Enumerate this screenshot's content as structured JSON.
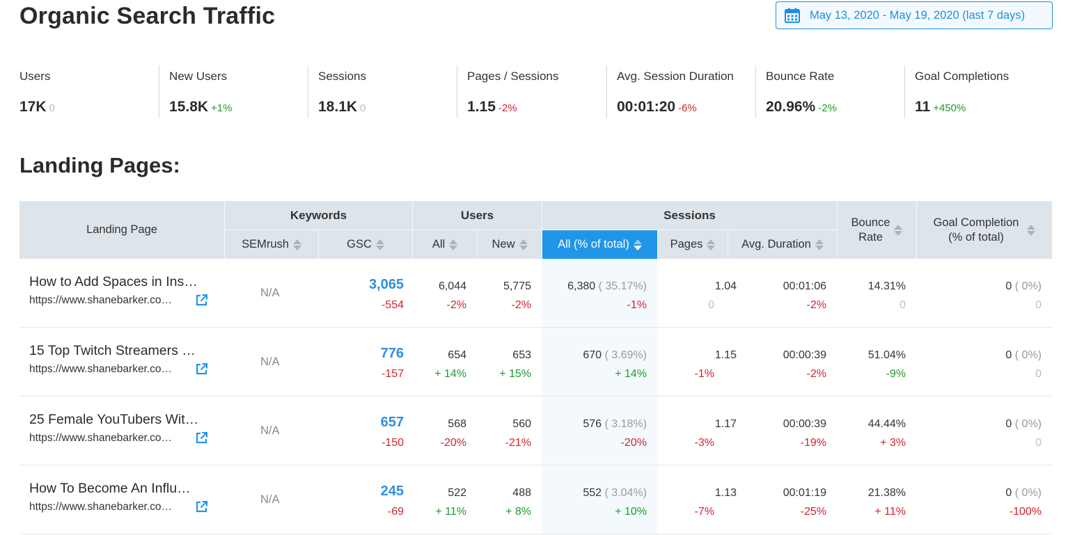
{
  "header": {
    "title": "Organic Search Traffic",
    "date_range": "May 13, 2020 - May 19, 2020 (last 7 days)"
  },
  "metrics": [
    {
      "label": "Users",
      "value": "17K",
      "delta": "0",
      "trend": "zero"
    },
    {
      "label": "New Users",
      "value": "15.8K",
      "delta": "+1%",
      "trend": "pos"
    },
    {
      "label": "Sessions",
      "value": "18.1K",
      "delta": "0",
      "trend": "zero"
    },
    {
      "label": "Pages / Sessions",
      "value": "1.15",
      "delta": "-2%",
      "trend": "neg"
    },
    {
      "label": "Avg. Session Duration",
      "value": "00:01:20",
      "delta": "-6%",
      "trend": "neg"
    },
    {
      "label": "Bounce Rate",
      "value": "20.96%",
      "delta": "-2%",
      "trend": "pos"
    },
    {
      "label": "Goal Completions",
      "value": "11",
      "delta": "+450%",
      "trend": "pos"
    }
  ],
  "landing": {
    "title": "Landing Pages:",
    "headers": {
      "landing_page": "Landing Page",
      "keywords": "Keywords",
      "users": "Users",
      "sessions": "Sessions",
      "semrush": "SEMrush",
      "gsc": "GSC",
      "all": "All",
      "new": "New",
      "all_pct": "All (% of total)",
      "pages": "Pages",
      "avg_duration": "Avg. Duration",
      "bounce_rate_1": "Bounce",
      "bounce_rate_2": "Rate",
      "goal_1": "Goal Completion",
      "goal_2": "(% of total)"
    },
    "rows": [
      {
        "title": "How to Add Spaces in Ins…",
        "url": "https://www.shanebarker.co…",
        "semrush": "N/A",
        "gsc": "3,065",
        "gsc_d": "-554",
        "gsc_t": "neg",
        "users_all": "6,044",
        "users_all_d": "-2%",
        "users_all_t": "neg",
        "users_new": "5,775",
        "users_new_d": "-2%",
        "users_new_t": "neg",
        "sessions": "6,380",
        "sessions_pct": "( 35.17%)",
        "sessions_d": "-1%",
        "sessions_t": "neg",
        "pages": "1.04",
        "pages_d": "0",
        "pages_t": "zero",
        "duration": "00:01:06",
        "duration_d": "-2%",
        "duration_t": "neg",
        "bounce": "14.31%",
        "bounce_d": "0",
        "bounce_t": "zero",
        "goal": "0",
        "goal_pct": "( 0%)",
        "goal_d": "0",
        "goal_t": "zero"
      },
      {
        "title": "15 Top Twitch Streamers …",
        "url": "https://www.shanebarker.co…",
        "semrush": "N/A",
        "gsc": "776",
        "gsc_d": "-157",
        "gsc_t": "neg",
        "users_all": "654",
        "users_all_d": "+ 14%",
        "users_all_t": "pos",
        "users_new": "653",
        "users_new_d": "+ 15%",
        "users_new_t": "pos",
        "sessions": "670",
        "sessions_pct": "( 3.69%)",
        "sessions_d": "+ 14%",
        "sessions_t": "pos",
        "pages": "1.15",
        "pages_d": "-1%",
        "pages_t": "neg",
        "duration": "00:00:39",
        "duration_d": "-2%",
        "duration_t": "neg",
        "bounce": "51.04%",
        "bounce_d": "-9%",
        "bounce_t": "pos",
        "goal": "0",
        "goal_pct": "( 0%)",
        "goal_d": "0",
        "goal_t": "zero"
      },
      {
        "title": "25 Female YouTubers Wit…",
        "url": "https://www.shanebarker.co…",
        "semrush": "N/A",
        "gsc": "657",
        "gsc_d": "-150",
        "gsc_t": "neg",
        "users_all": "568",
        "users_all_d": "-20%",
        "users_all_t": "neg",
        "users_new": "560",
        "users_new_d": "-21%",
        "users_new_t": "neg",
        "sessions": "576",
        "sessions_pct": "( 3.18%)",
        "sessions_d": "-20%",
        "sessions_t": "neg",
        "pages": "1.17",
        "pages_d": "-3%",
        "pages_t": "neg",
        "duration": "00:00:39",
        "duration_d": "-19%",
        "duration_t": "neg",
        "bounce": "44.44%",
        "bounce_d": "+ 3%",
        "bounce_t": "neg",
        "goal": "0",
        "goal_pct": "( 0%)",
        "goal_d": "0",
        "goal_t": "zero"
      },
      {
        "title": "How To Become An Influ…",
        "url": "https://www.shanebarker.co…",
        "semrush": "N/A",
        "gsc": "245",
        "gsc_d": "-69",
        "gsc_t": "neg",
        "users_all": "522",
        "users_all_d": "+ 11%",
        "users_all_t": "pos",
        "users_new": "488",
        "users_new_d": "+ 8%",
        "users_new_t": "pos",
        "sessions": "552",
        "sessions_pct": "( 3.04%)",
        "sessions_d": "+ 10%",
        "sessions_t": "pos",
        "pages": "1.13",
        "pages_d": "-7%",
        "pages_t": "neg",
        "duration": "00:01:19",
        "duration_d": "-25%",
        "duration_t": "neg",
        "bounce": "21.38%",
        "bounce_d": "+ 11%",
        "bounce_t": "neg",
        "goal": "0",
        "goal_pct": "( 0%)",
        "goal_d": "-100%",
        "goal_t": "neg"
      }
    ]
  }
}
